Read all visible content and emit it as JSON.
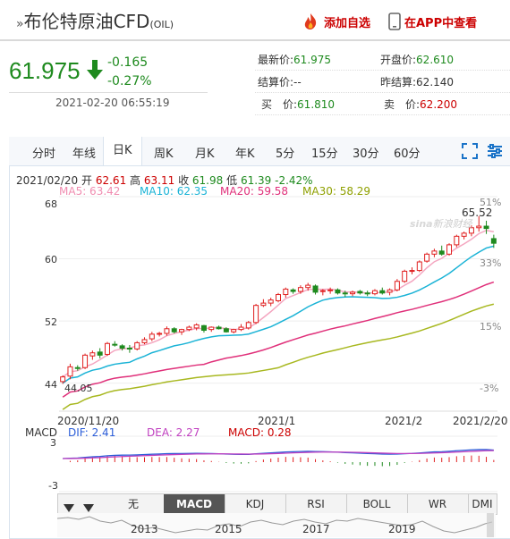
{
  "header": {
    "title": "布伦特原油CFD",
    "code": "(OIL)",
    "add_watch": "添加自选",
    "app_view": "在APP中查看"
  },
  "quote": {
    "price": "61.975",
    "change": "-0.165",
    "change_pct": "-0.27%",
    "datetime": "2021-02-20 06:55:19"
  },
  "stats": {
    "latest_label": "最新价:",
    "latest": "61.975",
    "open_label": "开盘价:",
    "open": "62.610",
    "settle_label": "结算价:",
    "settle": "--",
    "prev_label": "昨结算:",
    "prev": "62.140",
    "bid_label": "买　价:",
    "bid": "61.810",
    "ask_label": "卖　价:",
    "ask": "62.200"
  },
  "tabs": [
    "分时",
    "年线",
    "日K",
    "周K",
    "月K",
    "年K",
    "5分",
    "15分",
    "30分",
    "60分"
  ],
  "ticker": {
    "date": "2021/02/20",
    "open_label": "开",
    "open": "62.61",
    "high_label": "高",
    "high": "63.11",
    "close_label": "收",
    "close": "61.98",
    "low_label": "低",
    "low": "61.39",
    "pct": "-2.42%"
  },
  "ma": {
    "ma5": "MA5: 63.42",
    "ma10": "MA10: 62.35",
    "ma20": "MA20: 59.58",
    "ma30": "MA30: 58.29"
  },
  "watermark": "新浪财经",
  "chart_data": {
    "type": "candlestick",
    "y_ticks": [
      "68",
      "60",
      "52",
      "44"
    ],
    "pct_ticks": [
      "51%",
      "33%",
      "15%",
      "-3%"
    ],
    "x_ticks": [
      "2020/11/20",
      "2021/1",
      "2021/2",
      "2021/2/20"
    ],
    "ylim": [
      42,
      68
    ],
    "max_label": "65.52",
    "min_label": "44.05",
    "candles": [
      [
        44.2,
        45.0,
        43.9,
        44.8
      ],
      [
        44.9,
        46.5,
        44.5,
        46.1
      ],
      [
        46.0,
        46.3,
        45.6,
        45.9
      ],
      [
        46.0,
        47.8,
        45.8,
        47.6
      ],
      [
        47.5,
        48.2,
        47.0,
        47.9
      ],
      [
        48.0,
        48.5,
        47.2,
        47.6
      ],
      [
        47.7,
        49.3,
        47.5,
        49.1
      ],
      [
        49.0,
        49.4,
        48.7,
        48.9
      ],
      [
        48.8,
        49.0,
        48.2,
        48.5
      ],
      [
        48.5,
        48.9,
        47.9,
        48.4
      ],
      [
        48.4,
        49.4,
        48.2,
        49.2
      ],
      [
        49.2,
        49.9,
        49.0,
        49.6
      ],
      [
        49.7,
        50.6,
        49.4,
        50.3
      ],
      [
        50.3,
        50.6,
        50.0,
        50.4
      ],
      [
        50.4,
        51.3,
        50.1,
        51.0
      ],
      [
        51.0,
        51.2,
        50.4,
        50.6
      ],
      [
        50.6,
        51.0,
        50.2,
        50.9
      ],
      [
        50.9,
        51.4,
        50.7,
        51.2
      ],
      [
        51.1,
        51.7,
        50.8,
        51.5
      ],
      [
        51.4,
        51.5,
        50.5,
        50.8
      ],
      [
        50.9,
        51.3,
        50.6,
        51.2
      ],
      [
        51.2,
        51.4,
        50.9,
        51.0
      ],
      [
        51.0,
        51.2,
        50.5,
        50.6
      ],
      [
        50.6,
        51.0,
        50.4,
        50.9
      ],
      [
        50.9,
        51.6,
        50.7,
        51.2
      ],
      [
        51.1,
        52.0,
        50.9,
        51.8
      ],
      [
        51.8,
        54.2,
        51.6,
        54.0
      ],
      [
        54.0,
        54.8,
        53.8,
        54.3
      ],
      [
        54.3,
        55.0,
        53.9,
        54.7
      ],
      [
        54.6,
        55.6,
        54.4,
        55.4
      ],
      [
        55.4,
        56.3,
        55.0,
        56.1
      ],
      [
        56.0,
        56.2,
        55.5,
        55.8
      ],
      [
        55.8,
        56.6,
        55.5,
        56.3
      ],
      [
        56.3,
        56.9,
        55.9,
        56.6
      ],
      [
        56.5,
        56.7,
        55.4,
        55.7
      ],
      [
        55.8,
        56.1,
        55.3,
        55.9
      ],
      [
        55.9,
        56.3,
        55.5,
        56.0
      ],
      [
        56.0,
        56.2,
        55.4,
        55.6
      ],
      [
        55.6,
        55.9,
        55.1,
        55.5
      ],
      [
        55.5,
        55.9,
        55.2,
        55.7
      ],
      [
        55.8,
        56.0,
        55.4,
        55.6
      ],
      [
        55.6,
        55.9,
        55.2,
        55.5
      ],
      [
        55.5,
        56.1,
        55.3,
        55.9
      ],
      [
        55.9,
        56.3,
        55.4,
        55.6
      ],
      [
        55.7,
        56.2,
        55.3,
        56.0
      ],
      [
        56.0,
        57.4,
        55.8,
        57.1
      ],
      [
        57.1,
        58.6,
        56.9,
        58.4
      ],
      [
        58.4,
        58.9,
        58.0,
        58.5
      ],
      [
        58.5,
        59.8,
        58.3,
        59.6
      ],
      [
        59.7,
        60.8,
        59.5,
        60.6
      ],
      [
        60.6,
        61.3,
        60.2,
        61.0
      ],
      [
        61.0,
        61.7,
        60.4,
        60.6
      ],
      [
        60.6,
        62.0,
        60.4,
        61.8
      ],
      [
        61.8,
        63.1,
        61.5,
        62.9
      ],
      [
        62.9,
        63.5,
        62.5,
        63.3
      ],
      [
        63.3,
        64.3,
        62.9,
        64.0
      ],
      [
        64.0,
        65.5,
        63.5,
        64.2
      ],
      [
        64.2,
        64.9,
        63.2,
        63.9
      ],
      [
        62.6,
        63.1,
        61.4,
        62.0
      ]
    ],
    "macd": {
      "dif": "DIF: 2.41",
      "dea": "DEA: 2.27",
      "macd": "MACD: 0.28",
      "yticks": [
        "3",
        "-3"
      ],
      "label": "MACD"
    },
    "indicators": [
      "无",
      "MACD",
      "KDJ",
      "RSI",
      "BOLL",
      "WR",
      "DMI"
    ],
    "years": [
      "2013",
      "2015",
      "2017",
      "2019"
    ]
  },
  "colors": {
    "up": "#e02020",
    "down": "#1e8a1e",
    "ma5": "#f4a6c0",
    "ma10": "#1ab3d6",
    "ma20": "#e0307a",
    "ma30": "#a8b820"
  }
}
